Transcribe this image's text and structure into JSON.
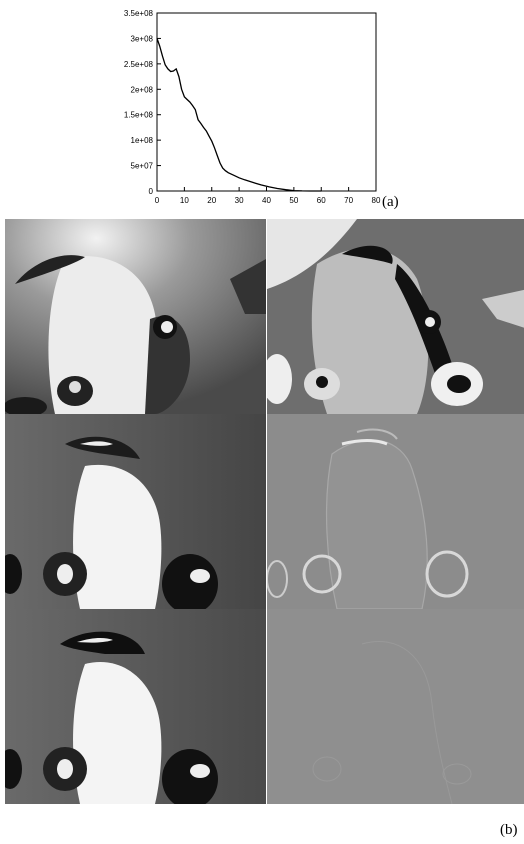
{
  "figure": {
    "label_a": "(a)",
    "label_b": "(b)"
  },
  "chart_data": {
    "type": "line",
    "title": "",
    "xlabel": "",
    "ylabel": "",
    "xlim": [
      0,
      80
    ],
    "ylim": [
      0,
      350000000
    ],
    "x_ticks": [
      "0",
      "10",
      "20",
      "30",
      "40",
      "50",
      "60",
      "70",
      "80"
    ],
    "y_ticks": [
      "0",
      "5e+07",
      "1e+08",
      "1.5e+08",
      "2e+08",
      "2.5e+08",
      "3e+08",
      "3.5e+08"
    ],
    "grid": false,
    "series": [
      {
        "x": [
          0,
          1,
          2,
          3,
          4,
          5,
          6,
          7,
          8,
          9,
          10,
          11,
          12,
          13,
          14,
          15,
          16,
          17,
          18,
          19,
          20,
          21,
          22,
          23,
          24,
          25,
          26,
          28,
          30,
          32,
          35,
          38,
          41,
          44,
          47,
          50,
          53,
          56,
          60
        ],
        "y": [
          300000000,
          285000000,
          265000000,
          248000000,
          240000000,
          235000000,
          236000000,
          240000000,
          225000000,
          200000000,
          185000000,
          180000000,
          175000000,
          168000000,
          160000000,
          140000000,
          133000000,
          125000000,
          118000000,
          108000000,
          98000000,
          85000000,
          70000000,
          55000000,
          45000000,
          40000000,
          36000000,
          31000000,
          26000000,
          22000000,
          17000000,
          12000000,
          8000000,
          5000000,
          2500000,
          800000,
          200000,
          0,
          0
        ]
      }
    ]
  },
  "panels": [
    {
      "id": "top-left",
      "tone": "original-frame"
    },
    {
      "id": "top-right",
      "tone": "residual-high-contrast"
    },
    {
      "id": "mid-left",
      "tone": "reconstruction"
    },
    {
      "id": "mid-right",
      "tone": "residual-medium"
    },
    {
      "id": "bottom-left",
      "tone": "reconstruction-final"
    },
    {
      "id": "bottom-right",
      "tone": "residual-flat"
    }
  ]
}
